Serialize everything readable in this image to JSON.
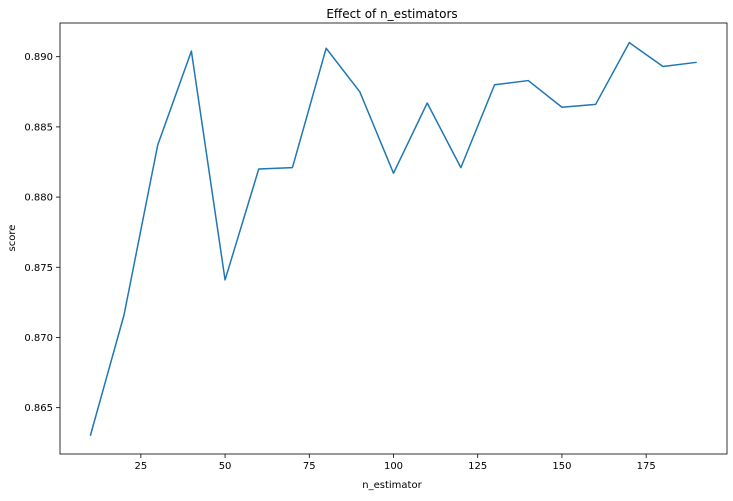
{
  "chart_data": {
    "type": "line",
    "title": "Effect of n_estimators",
    "xlabel": "n_estimator",
    "ylabel": "score",
    "xlim": [
      1,
      199
    ],
    "ylim": [
      0.8617,
      0.8924
    ],
    "xticks": [
      25,
      50,
      75,
      100,
      125,
      150,
      175
    ],
    "yticks": [
      0.865,
      0.87,
      0.875,
      0.88,
      0.885,
      0.89
    ],
    "ytick_format": "0.000",
    "grid": false,
    "legend": "none",
    "series": [
      {
        "color": "#1f77b4",
        "x": [
          10,
          20,
          30,
          40,
          50,
          60,
          70,
          80,
          90,
          100,
          110,
          120,
          130,
          140,
          150,
          160,
          170,
          180,
          190
        ],
        "y": [
          0.863,
          0.8716,
          0.8837,
          0.8904,
          0.8741,
          0.882,
          0.8821,
          0.8906,
          0.8875,
          0.8817,
          0.8867,
          0.8821,
          0.888,
          0.8883,
          0.8864,
          0.8866,
          0.891,
          0.8893,
          0.8896
        ]
      }
    ]
  }
}
